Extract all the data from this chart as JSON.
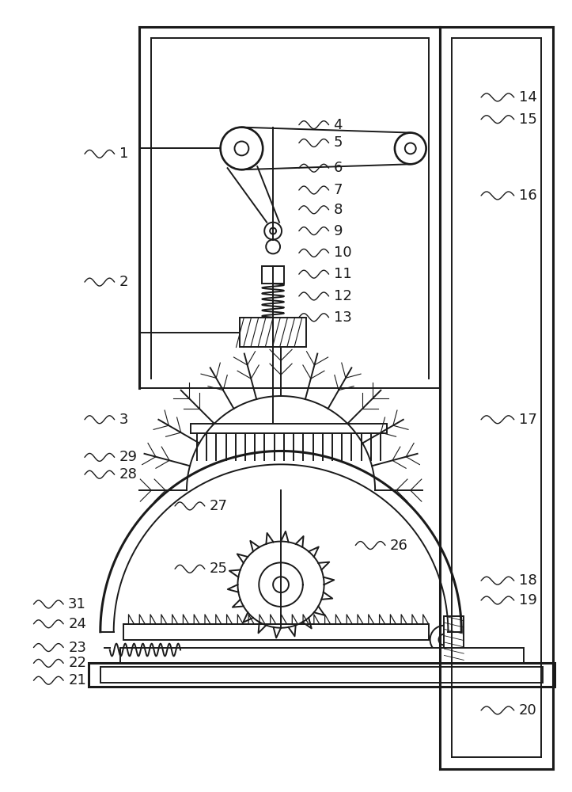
{
  "bg_color": "#ffffff",
  "line_color": "#1a1a1a",
  "lw": 1.4,
  "tlw": 2.2,
  "fig_w": 7.23,
  "fig_h": 10.0,
  "dpi": 100
}
